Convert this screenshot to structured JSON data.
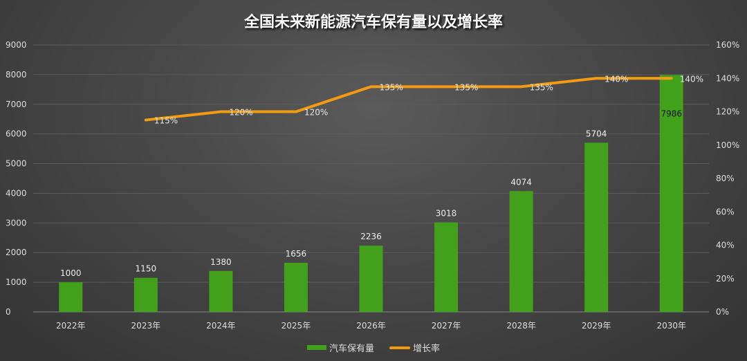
{
  "chart_data": {
    "type": "bar+line",
    "title": "全国未来新能源汽车保有量以及增长率",
    "categories": [
      "2022年",
      "2023年",
      "2024年",
      "2025年",
      "2026年",
      "2027年",
      "2028年",
      "2029年",
      "2030年"
    ],
    "series": [
      {
        "name": "汽车保有量",
        "type": "bar",
        "axis": "left",
        "color": "#43a01a",
        "values": [
          1000,
          1150,
          1380,
          1656,
          2236,
          3018,
          4074,
          5704,
          7986
        ]
      },
      {
        "name": "增长率",
        "type": "line",
        "axis": "right",
        "color": "#f39c12",
        "values": [
          null,
          115,
          120,
          120,
          135,
          135,
          135,
          140,
          140
        ]
      }
    ],
    "y_left": {
      "range": [
        0,
        9000
      ],
      "ticks": [
        0,
        1000,
        2000,
        3000,
        4000,
        5000,
        6000,
        7000,
        8000,
        9000
      ]
    },
    "y_right": {
      "range": [
        0,
        160
      ],
      "unit": "%",
      "ticks": [
        0,
        20,
        40,
        60,
        80,
        100,
        120,
        140,
        160
      ]
    },
    "grid": true,
    "legend_position": "bottom"
  }
}
